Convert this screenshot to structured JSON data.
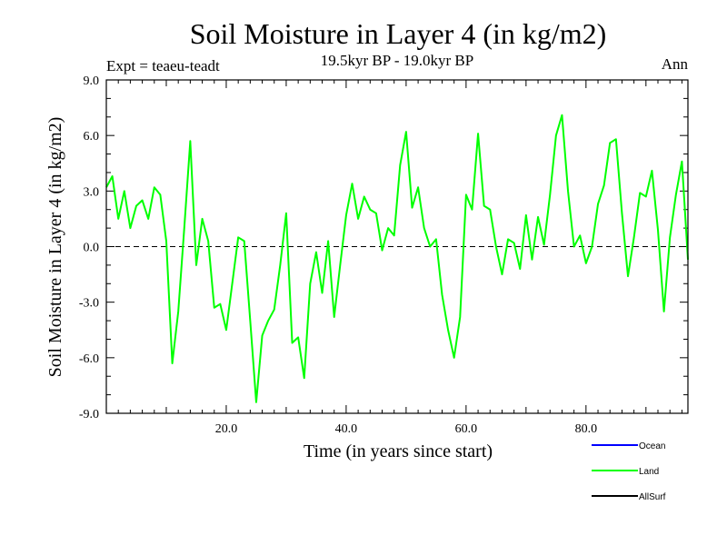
{
  "header": {
    "experiment": "Expt = teaeu-teadt",
    "period": "19.5kyr BP - 19.0kyr BP",
    "season": "Ann"
  },
  "chart_data": {
    "type": "line",
    "title": "Soil Moisture in Layer 4 (in kg/m2)",
    "xlabel": "Time (in years since start)",
    "ylabel": "Soil Moisture in Layer 4 (in kg/m2)",
    "xlim": [
      0,
      97
    ],
    "ylim": [
      -9.0,
      9.0
    ],
    "yticks": [
      -9.0,
      -6.0,
      -3.0,
      0.0,
      3.0,
      6.0,
      9.0
    ],
    "ytick_labels": [
      "-9.0",
      "-6.0",
      "-3.0",
      "0.0",
      "3.0",
      "6.0",
      "9.0"
    ],
    "xticks": [
      20,
      40,
      60,
      80
    ],
    "xtick_labels": [
      "20.0",
      "40.0",
      "60.0",
      "80.0"
    ],
    "zero_line": true,
    "legend": [
      {
        "name": "Ocean",
        "color": "#0000ff"
      },
      {
        "name": "Land",
        "color": "#00ff00"
      },
      {
        "name": "AllSurf",
        "color": "#000000"
      }
    ],
    "series": [
      {
        "name": "Land",
        "color": "#00ff00",
        "x": [
          0,
          1,
          2,
          3,
          4,
          5,
          6,
          7,
          8,
          9,
          10,
          11,
          12,
          13,
          14,
          15,
          16,
          17,
          18,
          19,
          20,
          21,
          22,
          23,
          24,
          25,
          26,
          27,
          28,
          29,
          30,
          31,
          32,
          33,
          34,
          35,
          36,
          37,
          38,
          39,
          40,
          41,
          42,
          43,
          44,
          45,
          46,
          47,
          48,
          49,
          50,
          51,
          52,
          53,
          54,
          55,
          56,
          57,
          58,
          59,
          60,
          61,
          62,
          63,
          64,
          65,
          66,
          67,
          68,
          69,
          70,
          71,
          72,
          73,
          74,
          75,
          76,
          77,
          78,
          79,
          80,
          81,
          82,
          83,
          84,
          85,
          86,
          87,
          88,
          89,
          90,
          91,
          92,
          93,
          94,
          95,
          96,
          97
        ],
        "values": [
          3.2,
          3.8,
          1.5,
          3.0,
          1.0,
          2.2,
          2.5,
          1.5,
          3.2,
          2.8,
          0.3,
          -6.3,
          -3.5,
          1.0,
          5.7,
          -1.0,
          1.5,
          0.3,
          -3.3,
          -3.1,
          -4.5,
          -2.0,
          0.5,
          0.3,
          -4.0,
          -8.4,
          -4.8,
          -4.0,
          -3.4,
          -1.0,
          1.8,
          -5.2,
          -4.9,
          -7.1,
          -2.0,
          -0.3,
          -2.5,
          0.3,
          -3.8,
          -1.0,
          1.7,
          3.4,
          1.5,
          2.7,
          2.0,
          1.8,
          -0.2,
          1.0,
          0.6,
          4.4,
          6.2,
          2.1,
          3.2,
          1.0,
          0.0,
          0.4,
          -2.6,
          -4.5,
          -6.0,
          -3.8,
          2.8,
          2.0,
          6.1,
          2.2,
          2.0,
          0.0,
          -1.5,
          0.4,
          0.2,
          -1.2,
          1.7,
          -0.7,
          1.6,
          0.1,
          2.8,
          6.0,
          7.1,
          3.0,
          0.0,
          0.6,
          -0.9,
          0.0,
          2.3,
          3.3,
          5.6,
          5.8,
          1.8,
          -1.6,
          0.5,
          2.9,
          2.7,
          4.1,
          0.9,
          -3.5,
          0.5,
          2.8,
          4.6,
          -0.7
        ]
      }
    ]
  }
}
